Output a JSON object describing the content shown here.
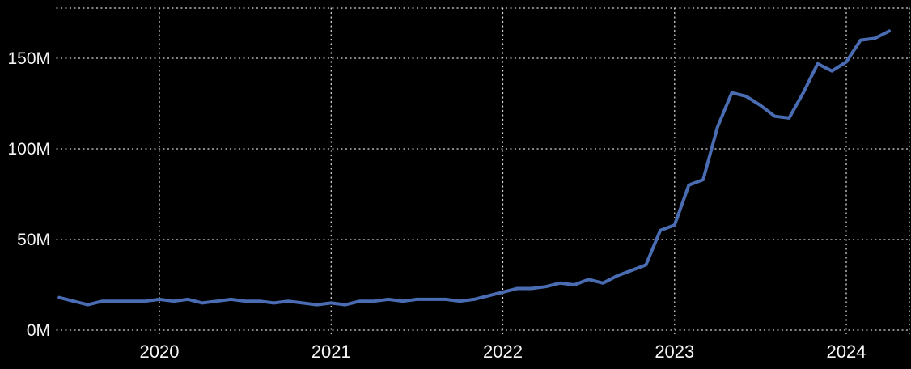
{
  "chart_data": {
    "type": "line",
    "x": [
      "2019-06",
      "2019-07",
      "2019-08",
      "2019-09",
      "2019-10",
      "2019-11",
      "2019-12",
      "2020-01",
      "2020-02",
      "2020-03",
      "2020-04",
      "2020-05",
      "2020-06",
      "2020-07",
      "2020-08",
      "2020-09",
      "2020-10",
      "2020-11",
      "2020-12",
      "2021-01",
      "2021-02",
      "2021-03",
      "2021-04",
      "2021-05",
      "2021-06",
      "2021-07",
      "2021-08",
      "2021-09",
      "2021-10",
      "2021-11",
      "2021-12",
      "2022-01",
      "2022-02",
      "2022-03",
      "2022-04",
      "2022-05",
      "2022-06",
      "2022-07",
      "2022-08",
      "2022-09",
      "2022-10",
      "2022-11",
      "2022-12",
      "2023-01",
      "2023-02",
      "2023-03",
      "2023-04",
      "2023-05",
      "2023-06",
      "2023-07",
      "2023-08",
      "2023-09",
      "2023-10",
      "2023-11",
      "2023-12",
      "2024-01",
      "2024-02",
      "2024-03",
      "2024-04"
    ],
    "values": [
      18,
      16,
      14,
      16,
      16,
      16,
      16,
      17,
      16,
      17,
      15,
      16,
      17,
      16,
      16,
      15,
      16,
      15,
      14,
      15,
      14,
      16,
      16,
      17,
      16,
      17,
      17,
      17,
      16,
      17,
      19,
      21,
      23,
      23,
      24,
      26,
      25,
      28,
      26,
      30,
      33,
      36,
      55,
      58,
      80,
      83,
      112,
      131,
      129,
      124,
      118,
      117,
      131,
      147,
      143,
      148,
      160,
      161,
      165
    ],
    "x_tick_labels": [
      "2020",
      "2021",
      "2022",
      "2023",
      "2024"
    ],
    "y_ticks": [
      {
        "label": "0M",
        "value": 0
      },
      {
        "label": "50M",
        "value": 50
      },
      {
        "label": "100M",
        "value": 100
      },
      {
        "label": "150M",
        "value": 150
      }
    ],
    "ylim": [
      0,
      178
    ],
    "unit": "M",
    "grid": "dotted",
    "legend": "none",
    "colors": {
      "background": "#000000",
      "line": "#4a6cb2",
      "grid": "#dcdcdc",
      "text": "#f5f5f5"
    }
  }
}
